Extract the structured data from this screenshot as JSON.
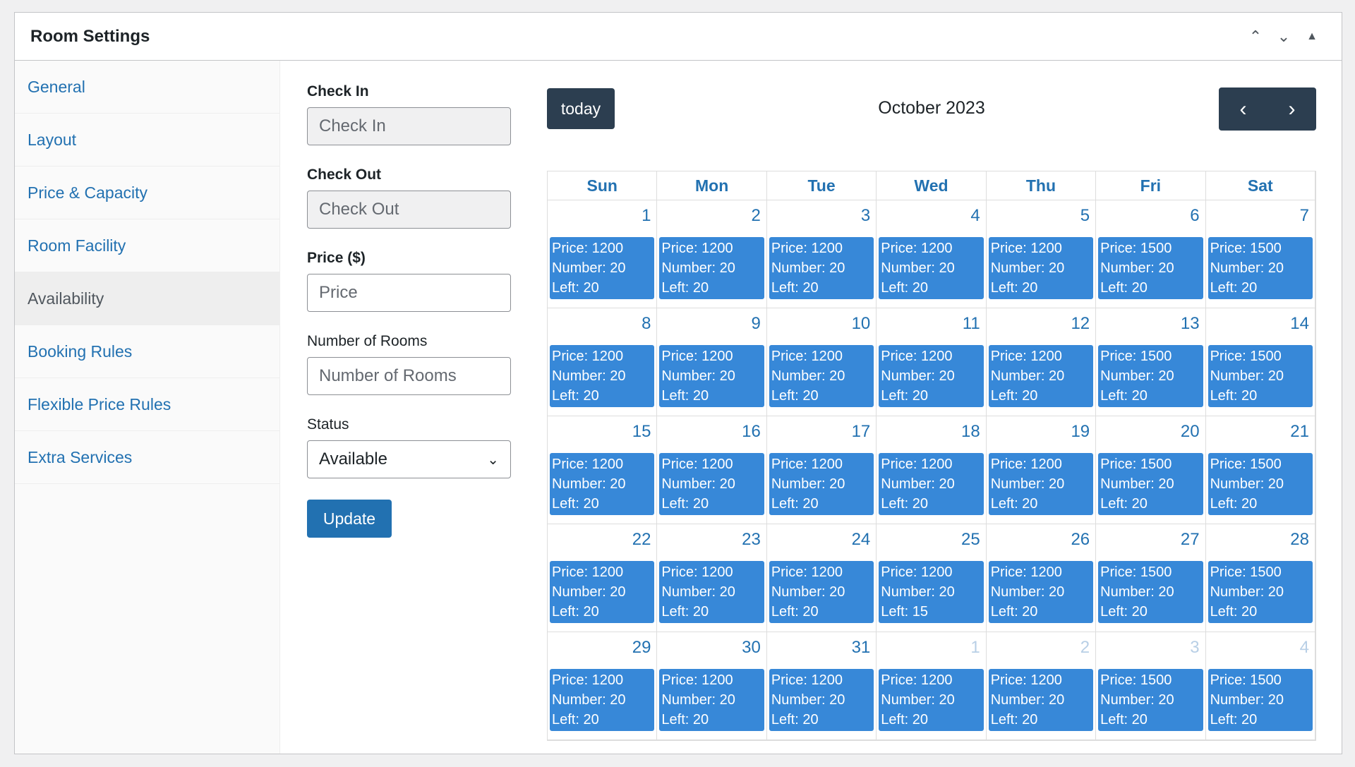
{
  "header": {
    "title": "Room Settings",
    "icons": [
      "chevron-up-icon",
      "chevron-down-icon",
      "triangle-up-icon"
    ]
  },
  "sidebar": {
    "items": [
      {
        "label": "General"
      },
      {
        "label": "Layout"
      },
      {
        "label": "Price & Capacity"
      },
      {
        "label": "Room Facility"
      },
      {
        "label": "Availability",
        "active": true
      },
      {
        "label": "Booking Rules"
      },
      {
        "label": "Flexible Price Rules"
      },
      {
        "label": "Extra Services"
      }
    ]
  },
  "form": {
    "check_in_label": "Check In",
    "check_in_placeholder": "Check In",
    "check_out_label": "Check Out",
    "check_out_placeholder": "Check Out",
    "price_label": "Price ($)",
    "price_placeholder": "Price",
    "rooms_label": "Number of Rooms",
    "rooms_placeholder": "Number of Rooms",
    "status_label": "Status",
    "status_value": "Available",
    "update_label": "Update"
  },
  "calendar": {
    "today_label": "today",
    "title": "October 2023",
    "prev_icon": "chevron-left-icon",
    "next_icon": "chevron-right-icon",
    "days": [
      "Sun",
      "Mon",
      "Tue",
      "Wed",
      "Thu",
      "Fri",
      "Sat"
    ],
    "cells": [
      {
        "d": "1",
        "p": "Price: 1200",
        "n": "Number: 20",
        "l": "Left: 20"
      },
      {
        "d": "2",
        "p": "Price: 1200",
        "n": "Number: 20",
        "l": "Left: 20"
      },
      {
        "d": "3",
        "p": "Price: 1200",
        "n": "Number: 20",
        "l": "Left: 20"
      },
      {
        "d": "4",
        "p": "Price: 1200",
        "n": "Number: 20",
        "l": "Left: 20"
      },
      {
        "d": "5",
        "p": "Price: 1200",
        "n": "Number: 20",
        "l": "Left: 20"
      },
      {
        "d": "6",
        "p": "Price: 1500",
        "n": "Number: 20",
        "l": "Left: 20"
      },
      {
        "d": "7",
        "p": "Price: 1500",
        "n": "Number: 20",
        "l": "Left: 20"
      },
      {
        "d": "8",
        "p": "Price: 1200",
        "n": "Number: 20",
        "l": "Left: 20"
      },
      {
        "d": "9",
        "p": "Price: 1200",
        "n": "Number: 20",
        "l": "Left: 20"
      },
      {
        "d": "10",
        "p": "Price: 1200",
        "n": "Number: 20",
        "l": "Left: 20"
      },
      {
        "d": "11",
        "p": "Price: 1200",
        "n": "Number: 20",
        "l": "Left: 20"
      },
      {
        "d": "12",
        "p": "Price: 1200",
        "n": "Number: 20",
        "l": "Left: 20"
      },
      {
        "d": "13",
        "p": "Price: 1500",
        "n": "Number: 20",
        "l": "Left: 20"
      },
      {
        "d": "14",
        "p": "Price: 1500",
        "n": "Number: 20",
        "l": "Left: 20"
      },
      {
        "d": "15",
        "p": "Price: 1200",
        "n": "Number: 20",
        "l": "Left: 20"
      },
      {
        "d": "16",
        "p": "Price: 1200",
        "n": "Number: 20",
        "l": "Left: 20"
      },
      {
        "d": "17",
        "p": "Price: 1200",
        "n": "Number: 20",
        "l": "Left: 20"
      },
      {
        "d": "18",
        "p": "Price: 1200",
        "n": "Number: 20",
        "l": "Left: 20"
      },
      {
        "d": "19",
        "p": "Price: 1200",
        "n": "Number: 20",
        "l": "Left: 20"
      },
      {
        "d": "20",
        "p": "Price: 1500",
        "n": "Number: 20",
        "l": "Left: 20"
      },
      {
        "d": "21",
        "p": "Price: 1500",
        "n": "Number: 20",
        "l": "Left: 20"
      },
      {
        "d": "22",
        "p": "Price: 1200",
        "n": "Number: 20",
        "l": "Left: 20"
      },
      {
        "d": "23",
        "p": "Price: 1200",
        "n": "Number: 20",
        "l": "Left: 20"
      },
      {
        "d": "24",
        "p": "Price: 1200",
        "n": "Number: 20",
        "l": "Left: 20"
      },
      {
        "d": "25",
        "p": "Price: 1200",
        "n": "Number: 20",
        "l": "Left: 15"
      },
      {
        "d": "26",
        "p": "Price: 1200",
        "n": "Number: 20",
        "l": "Left: 20"
      },
      {
        "d": "27",
        "p": "Price: 1500",
        "n": "Number: 20",
        "l": "Left: 20"
      },
      {
        "d": "28",
        "p": "Price: 1500",
        "n": "Number: 20",
        "l": "Left: 20"
      },
      {
        "d": "29",
        "p": "Price: 1200",
        "n": "Number: 20",
        "l": "Left: 20"
      },
      {
        "d": "30",
        "p": "Price: 1200",
        "n": "Number: 20",
        "l": "Left: 20"
      },
      {
        "d": "31",
        "p": "Price: 1200",
        "n": "Number: 20",
        "l": "Left: 20"
      },
      {
        "d": "1",
        "other": true,
        "p": "Price: 1200",
        "n": "Number: 20",
        "l": "Left: 20"
      },
      {
        "d": "2",
        "other": true,
        "p": "Price: 1200",
        "n": "Number: 20",
        "l": "Left: 20"
      },
      {
        "d": "3",
        "other": true,
        "p": "Price: 1500",
        "n": "Number: 20",
        "l": "Left: 20"
      },
      {
        "d": "4",
        "other": true,
        "p": "Price: 1500",
        "n": "Number: 20",
        "l": "Left: 20"
      }
    ]
  },
  "colors": {
    "event": "#3788d8",
    "toolbar_button": "#2c3e50",
    "link": "#2271b1"
  }
}
